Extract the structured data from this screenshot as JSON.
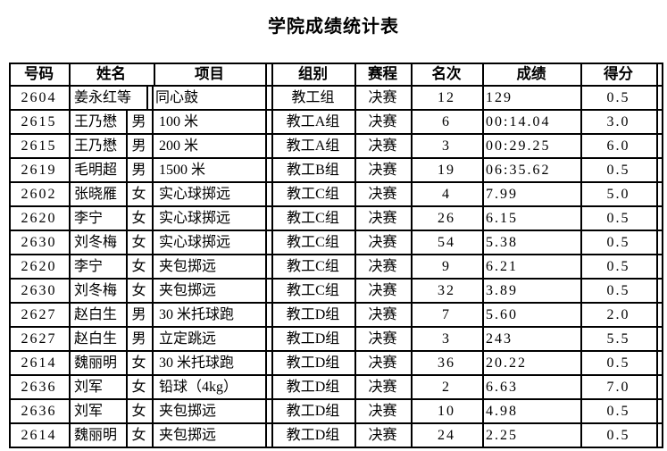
{
  "title": "学院成绩统计表",
  "colors": {
    "text": "#000000",
    "border": "#000000",
    "background": "#ffffff"
  },
  "table": {
    "headers": [
      "号码",
      "姓名",
      "项目",
      "组别",
      "赛程",
      "名次",
      "成绩",
      "得分"
    ],
    "rows": [
      {
        "num": "2604",
        "name": "姜永红等",
        "gender": "",
        "event": "同心鼓",
        "group": "教工组",
        "stage": "决赛",
        "rank": "12",
        "score": "129",
        "points": "0.5"
      },
      {
        "num": "2615",
        "name": "王乃懋",
        "gender": "男",
        "event": "100 米",
        "group": "教工A组",
        "stage": "决赛",
        "rank": "6",
        "score": "00:14.04",
        "points": "3.0"
      },
      {
        "num": "2615",
        "name": "王乃懋",
        "gender": "男",
        "event": "200 米",
        "group": "教工A组",
        "stage": "决赛",
        "rank": "3",
        "score": "00:29.25",
        "points": "6.0"
      },
      {
        "num": "2619",
        "name": "毛明超",
        "gender": "男",
        "event": "1500 米",
        "group": "教工B组",
        "stage": "决赛",
        "rank": "19",
        "score": "06:35.62",
        "points": "0.5"
      },
      {
        "num": "2602",
        "name": "张晓雁",
        "gender": "女",
        "event": "实心球掷远",
        "group": "教工C组",
        "stage": "决赛",
        "rank": "4",
        "score": "7.99",
        "points": "5.0"
      },
      {
        "num": "2620",
        "name": "李宁",
        "gender": "女",
        "event": "实心球掷远",
        "group": "教工C组",
        "stage": "决赛",
        "rank": "26",
        "score": "6.15",
        "points": "0.5"
      },
      {
        "num": "2630",
        "name": "刘冬梅",
        "gender": "女",
        "event": "实心球掷远",
        "group": "教工C组",
        "stage": "决赛",
        "rank": "54",
        "score": "5.38",
        "points": "0.5"
      },
      {
        "num": "2620",
        "name": "李宁",
        "gender": "女",
        "event": "夹包掷远",
        "group": "教工C组",
        "stage": "决赛",
        "rank": "9",
        "score": "6.21",
        "points": "0.5"
      },
      {
        "num": "2630",
        "name": "刘冬梅",
        "gender": "女",
        "event": "夹包掷远",
        "group": "教工C组",
        "stage": "决赛",
        "rank": "32",
        "score": "3.89",
        "points": "0.5"
      },
      {
        "num": "2627",
        "name": "赵白生",
        "gender": "男",
        "event": "30 米托球跑",
        "group": "教工D组",
        "stage": "决赛",
        "rank": "7",
        "score": "5.60",
        "points": "2.0"
      },
      {
        "num": "2627",
        "name": "赵白生",
        "gender": "男",
        "event": "立定跳远",
        "group": "教工D组",
        "stage": "决赛",
        "rank": "3",
        "score": "243",
        "points": "5.5"
      },
      {
        "num": "2614",
        "name": "魏丽明",
        "gender": "女",
        "event": "30 米托球跑",
        "group": "教工D组",
        "stage": "决赛",
        "rank": "36",
        "score": "20.22",
        "points": "0.5"
      },
      {
        "num": "2636",
        "name": "刘军",
        "gender": "女",
        "event": "铅球（4kg）",
        "group": "教工D组",
        "stage": "决赛",
        "rank": "2",
        "score": "6.63",
        "points": "7.0"
      },
      {
        "num": "2636",
        "name": "刘军",
        "gender": "女",
        "event": "夹包掷远",
        "group": "教工D组",
        "stage": "决赛",
        "rank": "10",
        "score": "4.98",
        "points": "0.5"
      },
      {
        "num": "2614",
        "name": "魏丽明",
        "gender": "女",
        "event": "夹包掷远",
        "group": "教工D组",
        "stage": "决赛",
        "rank": "24",
        "score": "2.25",
        "points": "0.5"
      }
    ]
  }
}
